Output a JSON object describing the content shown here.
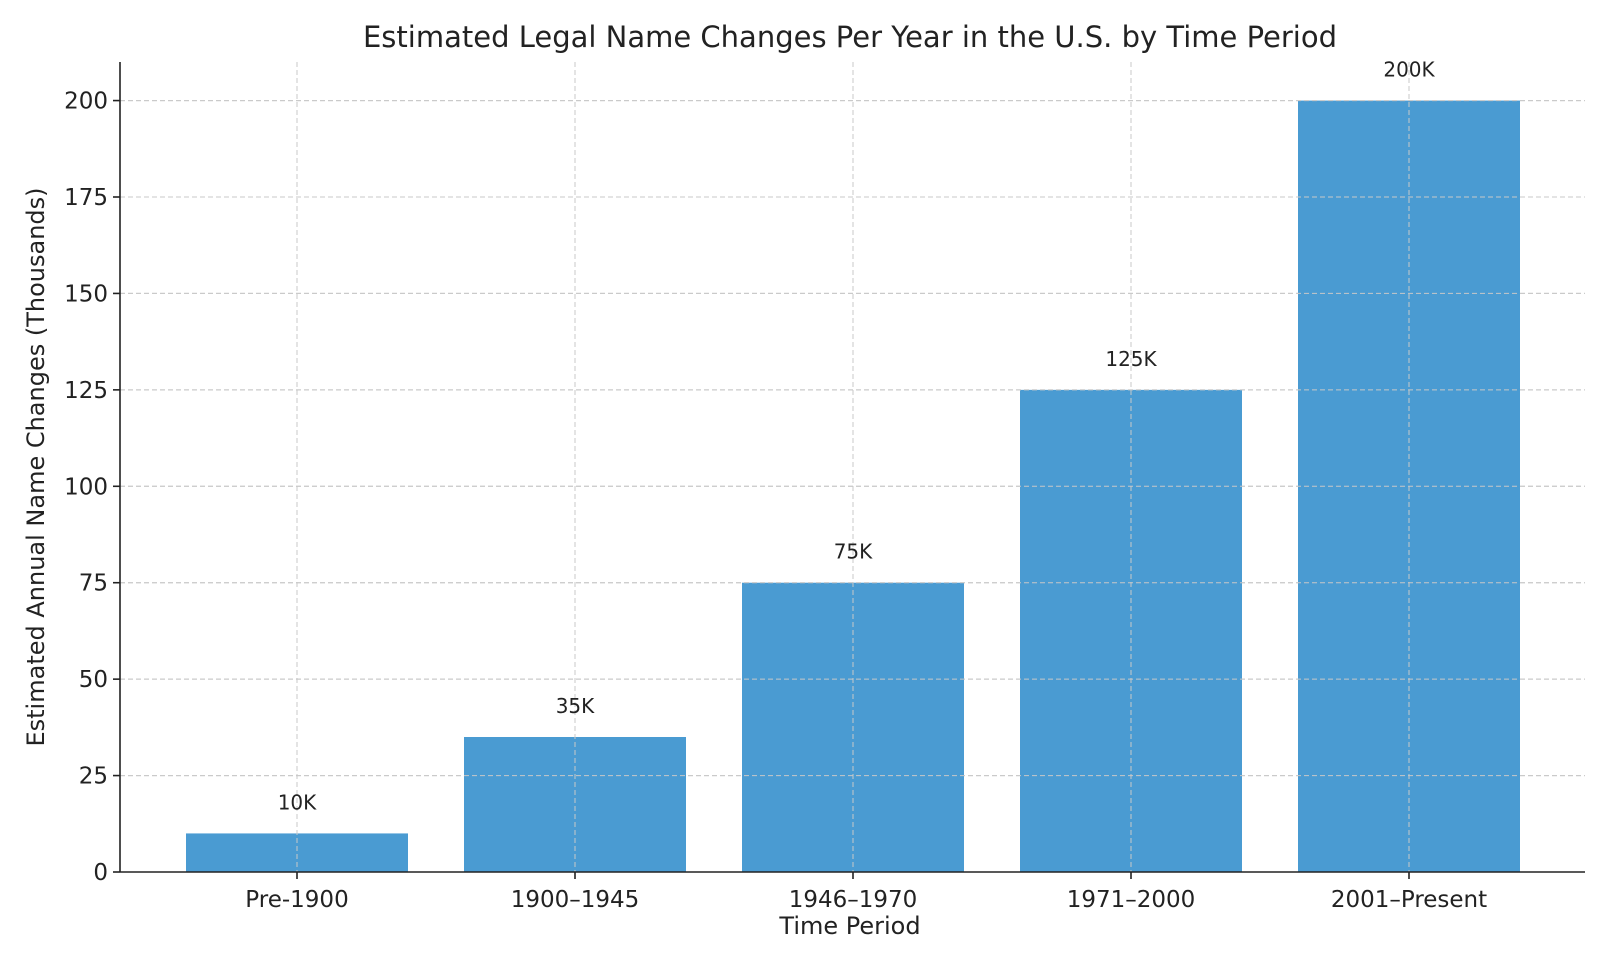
{
  "chart_data": {
    "type": "bar",
    "title": "Estimated Legal Name Changes Per Year in the U.S. by Time Period",
    "xlabel": "Time Period",
    "ylabel": "Estimated Annual Name Changes (Thousands)",
    "categories": [
      "Pre-1900",
      "1900–1945",
      "1946–1970",
      "1971–2000",
      "2001–Present"
    ],
    "values": [
      10,
      35,
      75,
      125,
      200
    ],
    "data_labels": [
      "10K",
      "35K",
      "75K",
      "125K",
      "200K"
    ],
    "ylim": [
      0,
      210
    ],
    "yticks": [
      0,
      25,
      50,
      75,
      100,
      125,
      150,
      175,
      200
    ],
    "grid": true,
    "bar_color": "#4a9bd2"
  }
}
